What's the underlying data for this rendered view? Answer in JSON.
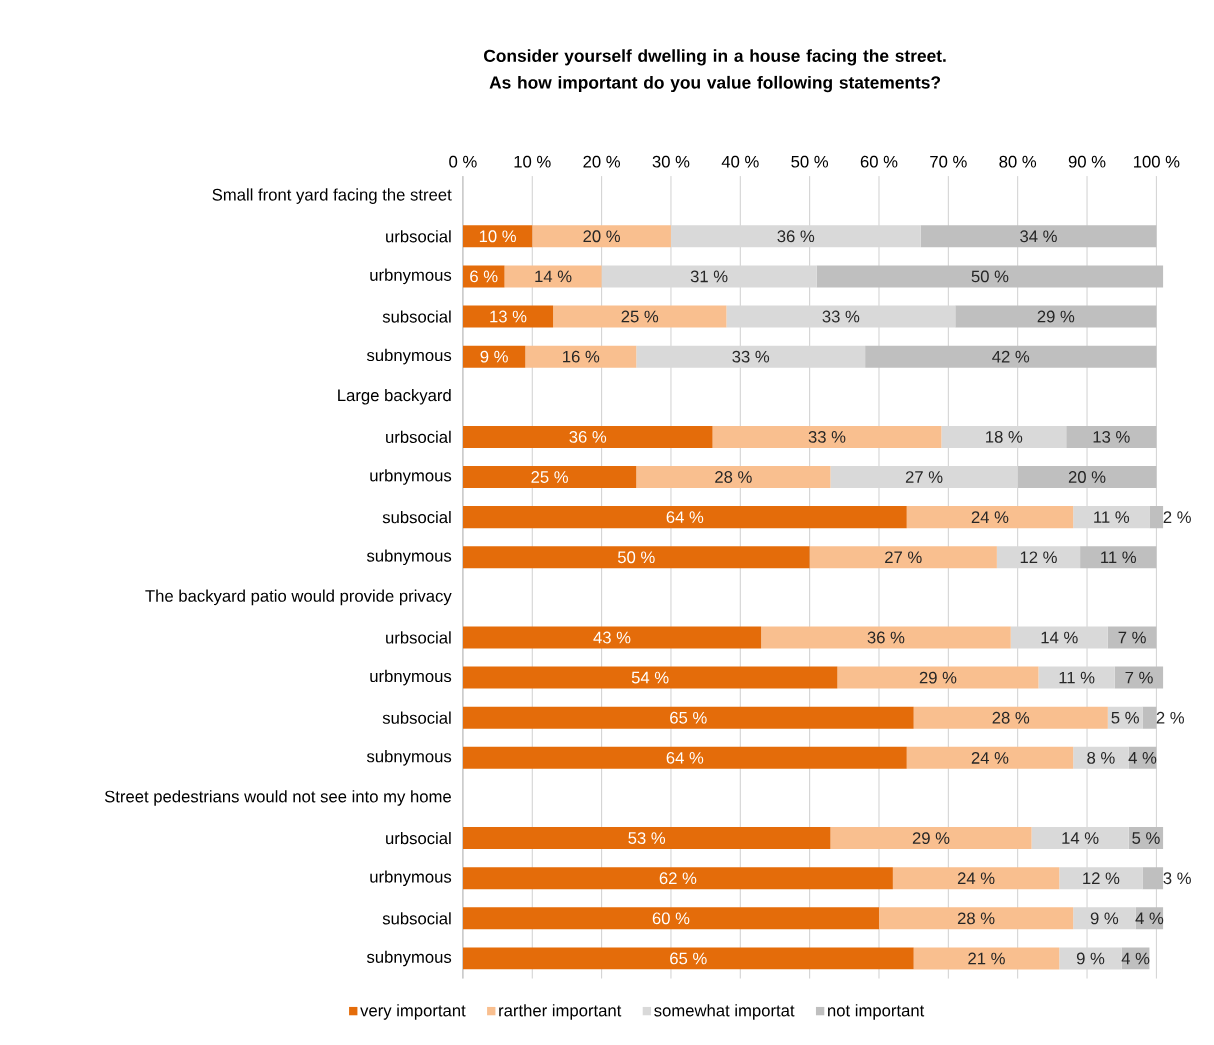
{
  "chart_data": {
    "type": "bar",
    "orientation": "horizontal",
    "stacked": true,
    "title": "Consider yourself dwelling in a house facing the street. As how important do you value following statements?",
    "categories": [
      "Small front yard facing the street",
      "urbsocial",
      "urbnymous",
      "subsocial",
      "subnymous",
      "Large backyard",
      "urbsocial",
      "urbnymous",
      "subsocial",
      "subnymous",
      "The backyard patio would provide privacy",
      "urbsocial",
      "urbnymous",
      "subsocial",
      "subnymous",
      "Street pedestrians would not see into my home",
      "urbsocial",
      "urbnymous",
      "subsocial",
      "subnymous"
    ],
    "series": [
      {
        "name": "very important",
        "color": "#e46c0a",
        "values": [
          null,
          10,
          6,
          13,
          9,
          null,
          36,
          25,
          64,
          50,
          null,
          43,
          54,
          65,
          64,
          null,
          53,
          62,
          60,
          65
        ],
        "value_labels": [
          null,
          "10 %",
          "6 %",
          "13 %",
          "9 %",
          null,
          "36 %",
          "25 %",
          "64 %",
          "50 %",
          null,
          "43 %",
          "54 %",
          "65 %",
          "64 %",
          null,
          "53 %",
          "62 %",
          "60 %",
          "65 %"
        ]
      },
      {
        "name": "rarther important",
        "color": "#f9bf8f",
        "values": [
          null,
          20,
          14,
          25,
          16,
          null,
          33,
          28,
          24,
          27,
          null,
          36,
          29,
          28,
          24,
          null,
          29,
          24,
          28,
          21
        ],
        "value_labels": [
          null,
          "20 %",
          "14 %",
          "25 %",
          "16 %",
          null,
          "33 %",
          "28 %",
          "24 %",
          "27 %",
          null,
          "36 %",
          "29 %",
          "28 %",
          "24 %",
          null,
          "29 %",
          "24 %",
          "28 %",
          "21 %"
        ]
      },
      {
        "name": "somewhat importat",
        "color": "#d9d9d9",
        "values": [
          null,
          36,
          31,
          33,
          33,
          null,
          18,
          27,
          11,
          12,
          null,
          14,
          11,
          5,
          8,
          null,
          14,
          12,
          9,
          9
        ],
        "value_labels": [
          null,
          "36 %",
          "31 %",
          "33 %",
          "33 %",
          null,
          "18 %",
          "27 %",
          "11 %",
          "12 %",
          null,
          "14 %",
          "11 %",
          "5 %",
          "8 %",
          null,
          "14 %",
          "12 %",
          "9 %",
          "9 %"
        ]
      },
      {
        "name": "not important",
        "color": "#bfbfbf",
        "values": [
          null,
          34,
          50,
          29,
          42,
          null,
          13,
          20,
          2,
          11,
          null,
          7,
          7,
          2,
          4,
          null,
          5,
          3,
          4,
          4
        ],
        "value_labels": [
          null,
          "34 %",
          "50 %",
          "29 %",
          "42 %",
          null,
          "13 %",
          "20 %",
          "2 %",
          "11 %",
          null,
          "7 %",
          "7 %",
          "2 %",
          "4 %",
          null,
          "5 %",
          "3 %",
          "4 %",
          "4 %"
        ]
      }
    ],
    "xlim": [
      0,
      101
    ],
    "xticks": [
      {
        "value": 0,
        "label": "0 %"
      },
      {
        "value": 10,
        "label": "10 %"
      },
      {
        "value": 20,
        "label": "20 %"
      },
      {
        "value": 30,
        "label": "30 %"
      },
      {
        "value": 40,
        "label": "40 %"
      },
      {
        "value": 50,
        "label": "50 %"
      },
      {
        "value": 60,
        "label": "60 %"
      },
      {
        "value": 70,
        "label": "70 %"
      },
      {
        "value": 80,
        "label": "80 %"
      },
      {
        "value": 90,
        "label": "90 %"
      },
      {
        "value": 100,
        "label": "100 %"
      }
    ],
    "grid": "x",
    "legend": "bottom"
  }
}
